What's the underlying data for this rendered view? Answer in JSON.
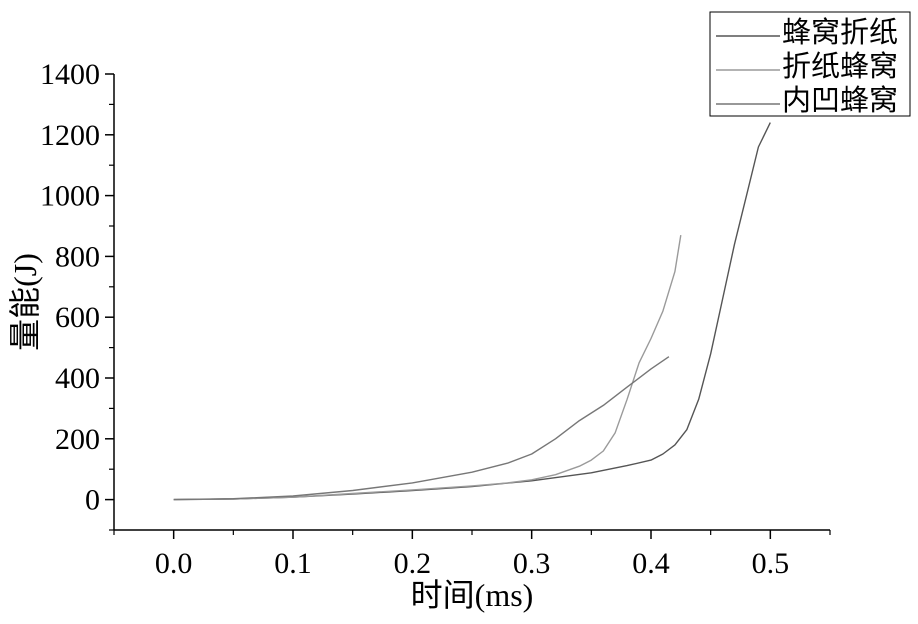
{
  "chart_data": {
    "type": "line",
    "xlabel": "时间(ms)",
    "ylabel": "量能(J)",
    "xlim": [
      -0.05,
      0.55
    ],
    "ylim": [
      -100,
      1400
    ],
    "x_ticks": [
      0.0,
      0.1,
      0.2,
      0.3,
      0.4,
      0.5
    ],
    "x_tick_labels": [
      "0.0",
      "0.1",
      "0.2",
      "0.3",
      "0.4",
      "0.5"
    ],
    "y_ticks": [
      0,
      200,
      400,
      600,
      800,
      1000,
      1200,
      1400
    ],
    "y_tick_labels": [
      "0",
      "200",
      "400",
      "600",
      "800",
      "1000",
      "1200",
      "1400"
    ],
    "grid": false,
    "legend_position": "top-right",
    "series": [
      {
        "name": "蜂窝折纸",
        "color": "#555555",
        "x": [
          0.0,
          0.05,
          0.1,
          0.15,
          0.2,
          0.25,
          0.3,
          0.35,
          0.38,
          0.4,
          0.41,
          0.42,
          0.43,
          0.44,
          0.45,
          0.46,
          0.47,
          0.48,
          0.49,
          0.5
        ],
        "y": [
          0,
          2,
          8,
          18,
          30,
          43,
          62,
          88,
          112,
          130,
          150,
          180,
          230,
          330,
          480,
          660,
          840,
          1000,
          1160,
          1240
        ]
      },
      {
        "name": "折纸蜂窝",
        "color": "#9a9a9a",
        "x": [
          0.0,
          0.05,
          0.1,
          0.15,
          0.2,
          0.25,
          0.28,
          0.3,
          0.32,
          0.34,
          0.35,
          0.36,
          0.37,
          0.38,
          0.39,
          0.4,
          0.41,
          0.42,
          0.425
        ],
        "y": [
          0,
          2,
          8,
          20,
          32,
          45,
          55,
          65,
          82,
          110,
          130,
          160,
          220,
          330,
          450,
          530,
          620,
          750,
          870
        ]
      },
      {
        "name": "内凹蜂窝",
        "color": "#777777",
        "x": [
          0.0,
          0.05,
          0.1,
          0.15,
          0.2,
          0.25,
          0.28,
          0.3,
          0.32,
          0.34,
          0.36,
          0.38,
          0.4,
          0.415
        ],
        "y": [
          0,
          3,
          12,
          30,
          55,
          90,
          120,
          150,
          200,
          260,
          310,
          370,
          430,
          470
        ]
      }
    ]
  }
}
